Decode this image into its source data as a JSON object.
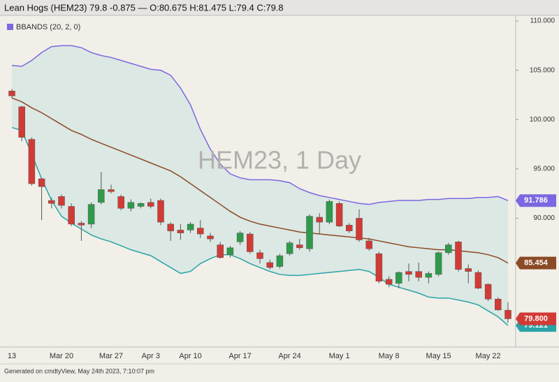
{
  "header": {
    "title": "Lean Hogs (HEM23) 79.8 -0.875 — O:80.675 H:81.475 L:79.4 C:79.8"
  },
  "chart_data": {
    "type": "candlestick",
    "legend": "BBANDS (20, 2, 0)",
    "watermark": "HEM23, 1 Day",
    "up_color": "#2e9a4c",
    "down_color": "#d23a36",
    "x": [
      "13",
      null,
      null,
      null,
      null,
      "Mar 20",
      null,
      null,
      null,
      null,
      "Mar 27",
      null,
      null,
      null,
      "Apr 3",
      null,
      null,
      null,
      "Apr 10",
      null,
      null,
      null,
      null,
      "Apr 17",
      null,
      null,
      null,
      null,
      "Apr 24",
      null,
      null,
      null,
      null,
      "May 1",
      null,
      null,
      null,
      null,
      "May 8",
      null,
      null,
      null,
      null,
      "May 15",
      null,
      null,
      null,
      null,
      "May 22",
      null,
      null
    ],
    "open": [
      102.9,
      101.3,
      98.0,
      94.0,
      91.8,
      92.2,
      91.2,
      89.5,
      89.4,
      91.6,
      92.9,
      92.2,
      91.0,
      91.2,
      91.6,
      91.8,
      89.4,
      88.8,
      88.8,
      89.0,
      88.2,
      87.3,
      86.3,
      87.6,
      88.4,
      86.5,
      85.5,
      85.1,
      86.4,
      87.3,
      86.9,
      90.1,
      89.6,
      91.5,
      89.3,
      90.0,
      87.7,
      86.4,
      83.8,
      83.4,
      84.6,
      84.6,
      84.0,
      84.3,
      86.5,
      87.6,
      84.9,
      84.5,
      83.3,
      81.8,
      80.675
    ],
    "high": [
      103.1,
      101.4,
      98.2,
      94.1,
      92.1,
      92.4,
      91.5,
      89.7,
      91.6,
      94.7,
      93.4,
      92.4,
      91.9,
      91.6,
      92.0,
      92.0,
      89.6,
      89.4,
      89.6,
      89.8,
      88.5,
      87.6,
      87.2,
      88.7,
      88.6,
      86.8,
      85.8,
      86.4,
      87.7,
      87.9,
      90.4,
      90.5,
      91.9,
      91.7,
      89.5,
      90.9,
      88.0,
      86.6,
      84.1,
      84.6,
      85.4,
      85.5,
      84.6,
      86.6,
      87.5,
      87.7,
      85.3,
      84.7,
      83.4,
      82.0,
      81.475
    ],
    "low": [
      102.2,
      97.8,
      93.3,
      89.8,
      91.0,
      91.0,
      89.2,
      87.7,
      89.0,
      91.4,
      92.5,
      90.8,
      90.7,
      91.0,
      91.0,
      89.3,
      87.7,
      87.8,
      88.5,
      88.0,
      87.6,
      85.9,
      86.0,
      87.3,
      86.4,
      85.4,
      84.8,
      84.9,
      86.2,
      86.8,
      86.6,
      88.4,
      89.4,
      89.1,
      88.5,
      87.6,
      86.7,
      83.4,
      83.0,
      82.9,
      83.6,
      83.6,
      83.4,
      84.1,
      86.3,
      84.6,
      83.4,
      82.8,
      81.6,
      80.6,
      79.4
    ],
    "close": [
      102.4,
      98.2,
      93.5,
      93.2,
      91.5,
      91.3,
      89.4,
      89.3,
      91.4,
      92.9,
      92.7,
      91.0,
      91.6,
      91.5,
      91.2,
      89.6,
      88.7,
      88.5,
      89.4,
      88.4,
      87.9,
      86.0,
      87.0,
      88.5,
      86.6,
      85.9,
      85.0,
      86.2,
      87.5,
      87.0,
      90.2,
      89.6,
      91.7,
      89.2,
      88.7,
      87.8,
      86.9,
      83.6,
      83.3,
      84.5,
      84.3,
      84.0,
      84.4,
      86.5,
      87.3,
      84.8,
      84.6,
      82.9,
      81.8,
      80.7,
      79.8
    ],
    "bands": [
      {
        "color": "#7b68e0",
        "values": [
          105.5,
          105.4,
          106.0,
          106.8,
          107.4,
          107.5,
          107.5,
          107.3,
          106.8,
          106.5,
          106.3,
          106.0,
          105.7,
          105.4,
          105.1,
          105.0,
          104.5,
          103.2,
          101.5,
          99.0,
          97.0,
          95.5,
          94.5,
          94.1,
          93.9,
          93.9,
          93.9,
          93.8,
          93.6,
          93.0,
          92.6,
          92.3,
          92.1,
          91.9,
          91.7,
          91.5,
          91.4,
          91.6,
          91.7,
          91.8,
          91.8,
          91.8,
          91.9,
          91.9,
          92.0,
          92.0,
          92.0,
          92.1,
          92.1,
          92.2,
          91.786
        ]
      },
      {
        "color": "#8a4a26",
        "values": [
          102.2,
          101.8,
          101.2,
          100.7,
          100.1,
          99.5,
          98.9,
          98.5,
          98.0,
          97.6,
          97.2,
          96.8,
          96.4,
          96.0,
          95.6,
          95.2,
          94.8,
          94.2,
          93.5,
          92.8,
          92.1,
          91.4,
          90.7,
          90.1,
          89.7,
          89.4,
          89.2,
          89.0,
          88.8,
          88.6,
          88.5,
          88.4,
          88.3,
          88.2,
          88.1,
          88.0,
          87.9,
          87.7,
          87.5,
          87.3,
          87.1,
          87.0,
          86.9,
          86.8,
          86.8,
          86.7,
          86.6,
          86.5,
          86.3,
          86.0,
          85.454
        ]
      },
      {
        "color": "#2aa3a6",
        "values": [
          99.2,
          98.9,
          96.5,
          94.0,
          91.8,
          90.2,
          89.5,
          88.9,
          88.3,
          87.9,
          87.6,
          87.2,
          86.8,
          86.5,
          86.2,
          85.6,
          85.0,
          84.4,
          84.6,
          85.4,
          85.9,
          86.3,
          86.3,
          85.9,
          85.4,
          85.0,
          84.6,
          84.3,
          84.2,
          84.2,
          84.3,
          84.4,
          84.5,
          84.6,
          84.7,
          84.8,
          84.6,
          84.0,
          83.3,
          83.0,
          82.7,
          82.4,
          82.0,
          81.9,
          81.9,
          81.7,
          81.5,
          81.2,
          80.6,
          80.0,
          79.121
        ]
      }
    ],
    "band_fill": "#dce8e3",
    "last_price": {
      "value": 79.8,
      "label": "79.800"
    },
    "ylim": [
      76.93,
      110.57
    ],
    "yticks": [
      {
        "value": 110,
        "label": "110.000"
      },
      {
        "value": 105,
        "label": "105.000"
      },
      {
        "value": 100,
        "label": "100.000"
      },
      {
        "value": 95,
        "label": "95.000"
      },
      {
        "value": 90,
        "label": "90.000"
      }
    ]
  },
  "footer": {
    "text": "Generated on cmdtyView, May 24th 2023, 7:10:07 pm"
  }
}
